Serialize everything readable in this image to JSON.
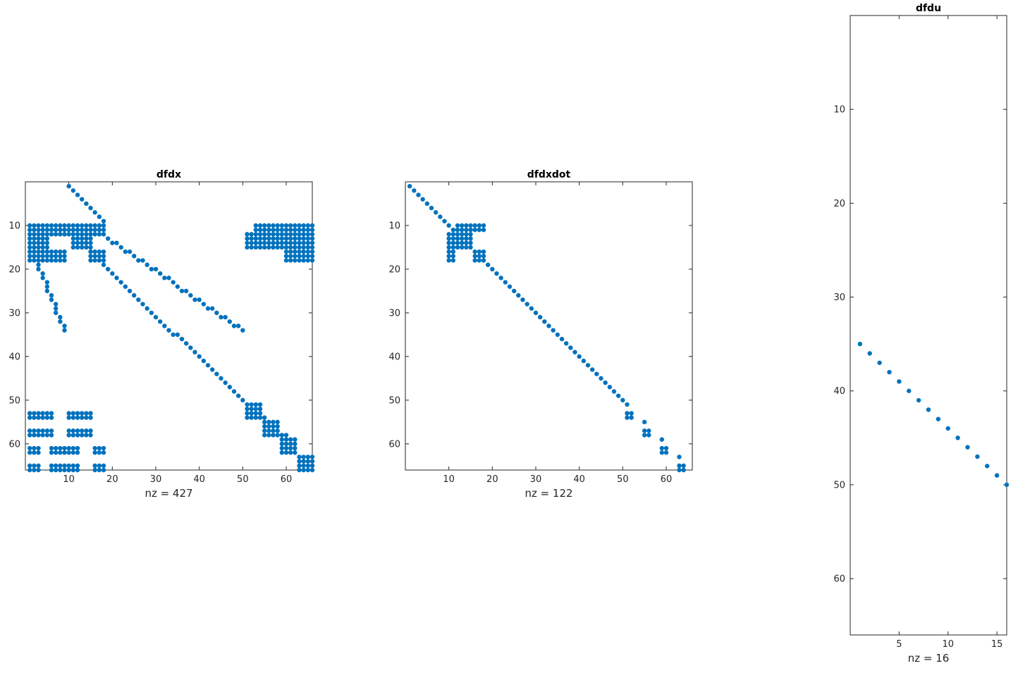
{
  "colors": {
    "marker": "#0072BD",
    "axis": "#262626",
    "background": "#ffffff"
  },
  "chart_data": [
    {
      "type": "scatter",
      "title": "dfdx",
      "xlabel": "nz = 427",
      "ylabel": "",
      "xlim": [
        0,
        66
      ],
      "ylim": [
        66,
        0
      ],
      "y_reversed": true,
      "xticks": [
        10,
        20,
        30,
        40,
        50,
        60
      ],
      "yticks": [
        10,
        20,
        30,
        40,
        50,
        60
      ],
      "grid": false,
      "markers_approximate": true,
      "diagonals": [
        {
          "from": [
            10,
            1
          ],
          "to": [
            18,
            9
          ]
        },
        {
          "from": [
            3,
            19
          ],
          "to": [
            9,
            34
          ]
        },
        {
          "from": [
            18,
            19
          ],
          "to": [
            50,
            50
          ]
        },
        {
          "from": [
            19,
            13
          ],
          "to": [
            50,
            34
          ]
        },
        {
          "from": [
            50,
            50
          ],
          "to": [
            62,
            60
          ]
        }
      ],
      "blocks": [
        {
          "cols": [
            1,
            18
          ],
          "rows": [
            10,
            12
          ]
        },
        {
          "cols": [
            1,
            5
          ],
          "rows": [
            13,
            18
          ]
        },
        {
          "cols": [
            6,
            9
          ],
          "rows": [
            16,
            18
          ]
        },
        {
          "cols": [
            11,
            15
          ],
          "rows": [
            13,
            15
          ]
        },
        {
          "cols": [
            15,
            18
          ],
          "rows": [
            16,
            18
          ]
        },
        {
          "cols": [
            51,
            66
          ],
          "rows": [
            12,
            15
          ]
        },
        {
          "cols": [
            53,
            66
          ],
          "rows": [
            10,
            11
          ]
        },
        {
          "cols": [
            60,
            66
          ],
          "rows": [
            16,
            18
          ]
        },
        {
          "cols": [
            1,
            6
          ],
          "rows": [
            53,
            54
          ]
        },
        {
          "cols": [
            1,
            6
          ],
          "rows": [
            57,
            58
          ]
        },
        {
          "cols": [
            1,
            3
          ],
          "rows": [
            61,
            62
          ]
        },
        {
          "cols": [
            1,
            3
          ],
          "rows": [
            65,
            66
          ]
        },
        {
          "cols": [
            10,
            15
          ],
          "rows": [
            53,
            54
          ]
        },
        {
          "cols": [
            10,
            15
          ],
          "rows": [
            57,
            58
          ]
        },
        {
          "cols": [
            6,
            12
          ],
          "rows": [
            61,
            62
          ]
        },
        {
          "cols": [
            6,
            12
          ],
          "rows": [
            65,
            66
          ]
        },
        {
          "cols": [
            16,
            18
          ],
          "rows": [
            61,
            62
          ]
        },
        {
          "cols": [
            16,
            18
          ],
          "rows": [
            65,
            66
          ]
        },
        {
          "cols": [
            51,
            54
          ],
          "rows": [
            51,
            54
          ]
        },
        {
          "cols": [
            55,
            58
          ],
          "rows": [
            55,
            58
          ]
        },
        {
          "cols": [
            59,
            62
          ],
          "rows": [
            59,
            62
          ]
        },
        {
          "cols": [
            63,
            66
          ],
          "rows": [
            63,
            66
          ]
        }
      ],
      "points": []
    },
    {
      "type": "scatter",
      "title": "dfdxdot",
      "xlabel": "nz = 122",
      "ylabel": "",
      "xlim": [
        0,
        66
      ],
      "ylim": [
        66,
        0
      ],
      "y_reversed": true,
      "xticks": [
        10,
        20,
        30,
        40,
        50,
        60
      ],
      "yticks": [
        10,
        20,
        30,
        40,
        50,
        60
      ],
      "grid": false,
      "markers_approximate": true,
      "diagonals": [
        {
          "from": [
            1,
            1
          ],
          "to": [
            51,
            51
          ]
        }
      ],
      "blocks": [
        {
          "cols": [
            12,
            18
          ],
          "rows": [
            10,
            11
          ]
        },
        {
          "cols": [
            10,
            15
          ],
          "rows": [
            12,
            15
          ]
        },
        {
          "cols": [
            10,
            11
          ],
          "rows": [
            16,
            18
          ]
        },
        {
          "cols": [
            16,
            18
          ],
          "rows": [
            16,
            18
          ]
        },
        {
          "cols": [
            51,
            52
          ],
          "rows": [
            53,
            54
          ]
        },
        {
          "cols": [
            55,
            56
          ],
          "rows": [
            57,
            58
          ]
        },
        {
          "cols": [
            59,
            60
          ],
          "rows": [
            61,
            62
          ]
        },
        {
          "cols": [
            63,
            64
          ],
          "rows": [
            65,
            66
          ]
        }
      ],
      "points": [
        [
          55,
          55
        ],
        [
          59,
          59
        ],
        [
          63,
          63
        ]
      ]
    },
    {
      "type": "scatter",
      "title": "dfdu",
      "xlabel": "nz = 16",
      "ylabel": "",
      "xlim": [
        0,
        16
      ],
      "ylim": [
        66,
        0
      ],
      "y_reversed": true,
      "xticks": [
        5,
        10,
        15
      ],
      "yticks": [
        10,
        20,
        30,
        40,
        50,
        60
      ],
      "grid": false,
      "markers_approximate": false,
      "diagonals": [
        {
          "from": [
            1,
            35
          ],
          "to": [
            16,
            50
          ]
        }
      ],
      "blocks": [],
      "points": []
    }
  ]
}
